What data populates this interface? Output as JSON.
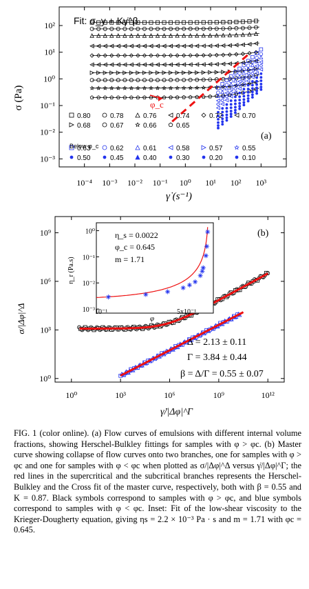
{
  "chart_data": [
    {
      "panel": "(a)",
      "type": "line",
      "xscale": "log",
      "yscale": "log",
      "xlim": [
        1e-05,
        10000
      ],
      "ylim": [
        0.0005,
        500
      ],
      "xlabel": "γ̇ (s⁻¹)",
      "ylabel": "σ (Pa)",
      "x_ticks": [
        "10⁻⁴",
        "10⁻³",
        "10⁻²",
        "10⁻¹",
        "10⁰",
        "10¹",
        "10²",
        "10³"
      ],
      "y_ticks": [
        "10²",
        "10¹",
        "10⁰",
        "10⁻¹",
        "10⁻²",
        "10⁻³"
      ],
      "fit_label": "Fit: σ_y + Kγ̇^β",
      "phi_c_label": "φ_c",
      "legend_above": [
        "0.80",
        "0.78",
        "0.76",
        "0.74",
        "0.72",
        "0.70",
        "0.68",
        "0.67",
        "0.66",
        "0.65"
      ],
      "below_label": "Below φ_c",
      "legend_below": [
        "0.63",
        "0.62",
        "0.61",
        "0.58",
        "0.57",
        "0.55",
        "0.50",
        "0.45",
        "0.40",
        "0.30",
        "0.20",
        "0.10"
      ],
      "series_above_yield": [
        {
          "name": "0.80",
          "sigma_y": 130,
          "K": 30,
          "beta": 0.6
        },
        {
          "name": "0.78",
          "sigma_y": 75,
          "K": 18,
          "beta": 0.6
        },
        {
          "name": "0.76",
          "sigma_y": 42,
          "K": 12,
          "beta": 0.6
        },
        {
          "name": "0.74",
          "sigma_y": 17,
          "K": 7,
          "beta": 0.6
        },
        {
          "name": "0.72",
          "sigma_y": 7.5,
          "K": 4,
          "beta": 0.6
        },
        {
          "name": "0.70",
          "sigma_y": 3.4,
          "K": 2.2,
          "beta": 0.6
        },
        {
          "name": "0.68",
          "sigma_y": 1.7,
          "K": 1.1,
          "beta": 0.6
        },
        {
          "name": "0.67",
          "sigma_y": 0.9,
          "K": 0.75,
          "beta": 0.6
        },
        {
          "name": "0.66",
          "sigma_y": 0.45,
          "K": 0.5,
          "beta": 0.6
        },
        {
          "name": "0.65",
          "sigma_y": 0.2,
          "K": 0.35,
          "beta": 0.6
        }
      ],
      "series_below_K": [
        {
          "name": "0.63",
          "K": 0.09
        },
        {
          "name": "0.62",
          "K": 0.06
        },
        {
          "name": "0.61",
          "K": 0.045
        },
        {
          "name": "0.58",
          "K": 0.03
        },
        {
          "name": "0.57",
          "K": 0.022
        },
        {
          "name": "0.55",
          "K": 0.016
        },
        {
          "name": "0.50",
          "K": 0.011
        },
        {
          "name": "0.45",
          "K": 0.008
        },
        {
          "name": "0.40",
          "K": 0.006
        },
        {
          "name": "0.30",
          "K": 0.0045
        },
        {
          "name": "0.20",
          "K": 0.0035
        },
        {
          "name": "0.10",
          "K": 0.0028
        }
      ]
    },
    {
      "panel": "(b)",
      "type": "scatter",
      "xscale": "log",
      "yscale": "log",
      "xlim": [
        0.1,
        10000000000000
      ],
      "ylim": [
        0.6,
        10000000000
      ],
      "xlabel": "γ̇/|Δφ|^Γ",
      "ylabel": "σ/|Δφ|^Δ",
      "x_ticks": [
        "10⁰",
        "10³",
        "10⁶",
        "10⁹",
        "10¹²"
      ],
      "y_ticks": [
        "10⁹",
        "10⁶",
        "10³",
        "10⁰"
      ],
      "upper_branch": {
        "plateau": 1200,
        "x_range": [
          3,
          1000000000000
        ],
        "K": 0.87,
        "beta": 0.55
      },
      "lower_branch": {
        "x_range": [
          1000,
          1000000000000
        ],
        "y_at_1000": 1.5,
        "slope": 0.55
      },
      "fit_text": [
        "Δ = 2.13 ± 0.11",
        "Γ = 3.84 ± 0.44",
        "β = Δ/Γ = 0.55 ± 0.07"
      ],
      "inset": {
        "xlabel": "φ",
        "ylabel": "η_r (Pa.s)",
        "x_tick_left": "10⁻¹",
        "x_tick_right": "5x10⁻¹",
        "y_ticks": [
          "10⁰",
          "10⁻¹",
          "10⁻²",
          "10⁻³"
        ],
        "phi": [
          0.1,
          0.2,
          0.3,
          0.4,
          0.45,
          0.5,
          0.55,
          0.57,
          0.58,
          0.61,
          0.62,
          0.63
        ],
        "eta": [
          0.0029,
          0.0036,
          0.0046,
          0.0065,
          0.0083,
          0.011,
          0.019,
          0.028,
          0.038,
          0.11,
          0.25,
          0.9
        ],
        "text": [
          "η_s = 0.0022",
          "φ_c = 0.645",
          "m = 1.71"
        ]
      }
    }
  ],
  "caption": {
    "label": "FIG. 1 (color online).",
    "text": "(a) Flow curves of emulsions with different internal volume fractions, showing Herschel-Bulkley fittings for samples with φ > φc. (b) Master curve showing collapse of flow curves onto two branches, one for samples with φ > φc and one for samples with φ < φc when plotted as σ/|Δφ|^Δ versus γ̇/|Δφ|^Γ; the red lines in the supercritical and the subcritical branches represents the Herschel-Bulkley and the Cross fit of the master curve, respectively, both with β = 0.55 and K = 0.87. Black symbols correspond to samples with φ > φc, and blue symbols correspond to samples with φ < φc. Inset: Fit of the low-shear viscosity to the Krieger-Dougherty equation, giving ηs = 2.2 × 10⁻³ Pa · s and m = 1.71 with φc = 0.645."
  },
  "colors": {
    "fit": "#ee1111",
    "below": "#2233ee",
    "above": "#000000"
  }
}
